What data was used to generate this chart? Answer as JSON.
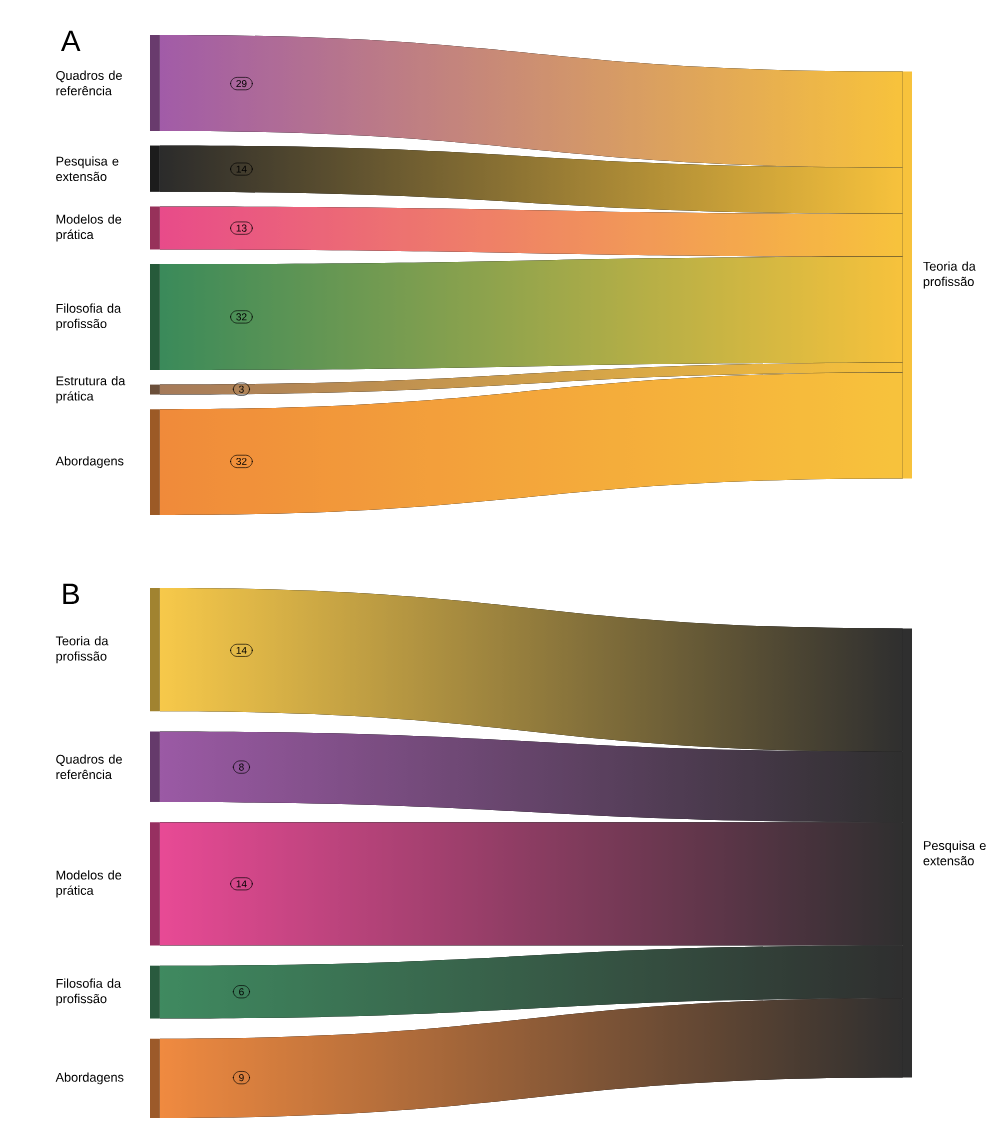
{
  "chart_data": [
    {
      "type": "other",
      "title": "A",
      "categories": [
        "Quadros de referência",
        "Pesquisa e extensão",
        "Modelos de prática",
        "Filosofia da profissão",
        "Estrutura da prática",
        "Abordagens"
      ],
      "values": [
        29,
        14,
        13,
        32,
        3,
        32
      ],
      "colors": [
        "#a15ba8",
        "#2b2b2b",
        "#e84b8a",
        "#3a8a5a",
        "#a57a5a",
        "#f08a3a"
      ],
      "color": "#f7c23c",
      "data_labels": true,
      "annotations": [
        "Teoria da profissão"
      ]
    },
    {
      "type": "other",
      "title": "B",
      "categories": [
        "Teoria da profissão",
        "Quadros de referência",
        "Modelos de prática",
        "Filosofia da profissão",
        "Abordagens"
      ],
      "values": [
        14,
        8,
        14,
        6,
        9
      ],
      "colors": [
        "#f7c94a",
        "#9b5aa5",
        "#e84a95",
        "#3f8a60",
        "#f08a40"
      ],
      "color": "#2f2f2f",
      "data_labels": true,
      "annotations": [
        "Pesquisa e extensão"
      ]
    }
  ]
}
